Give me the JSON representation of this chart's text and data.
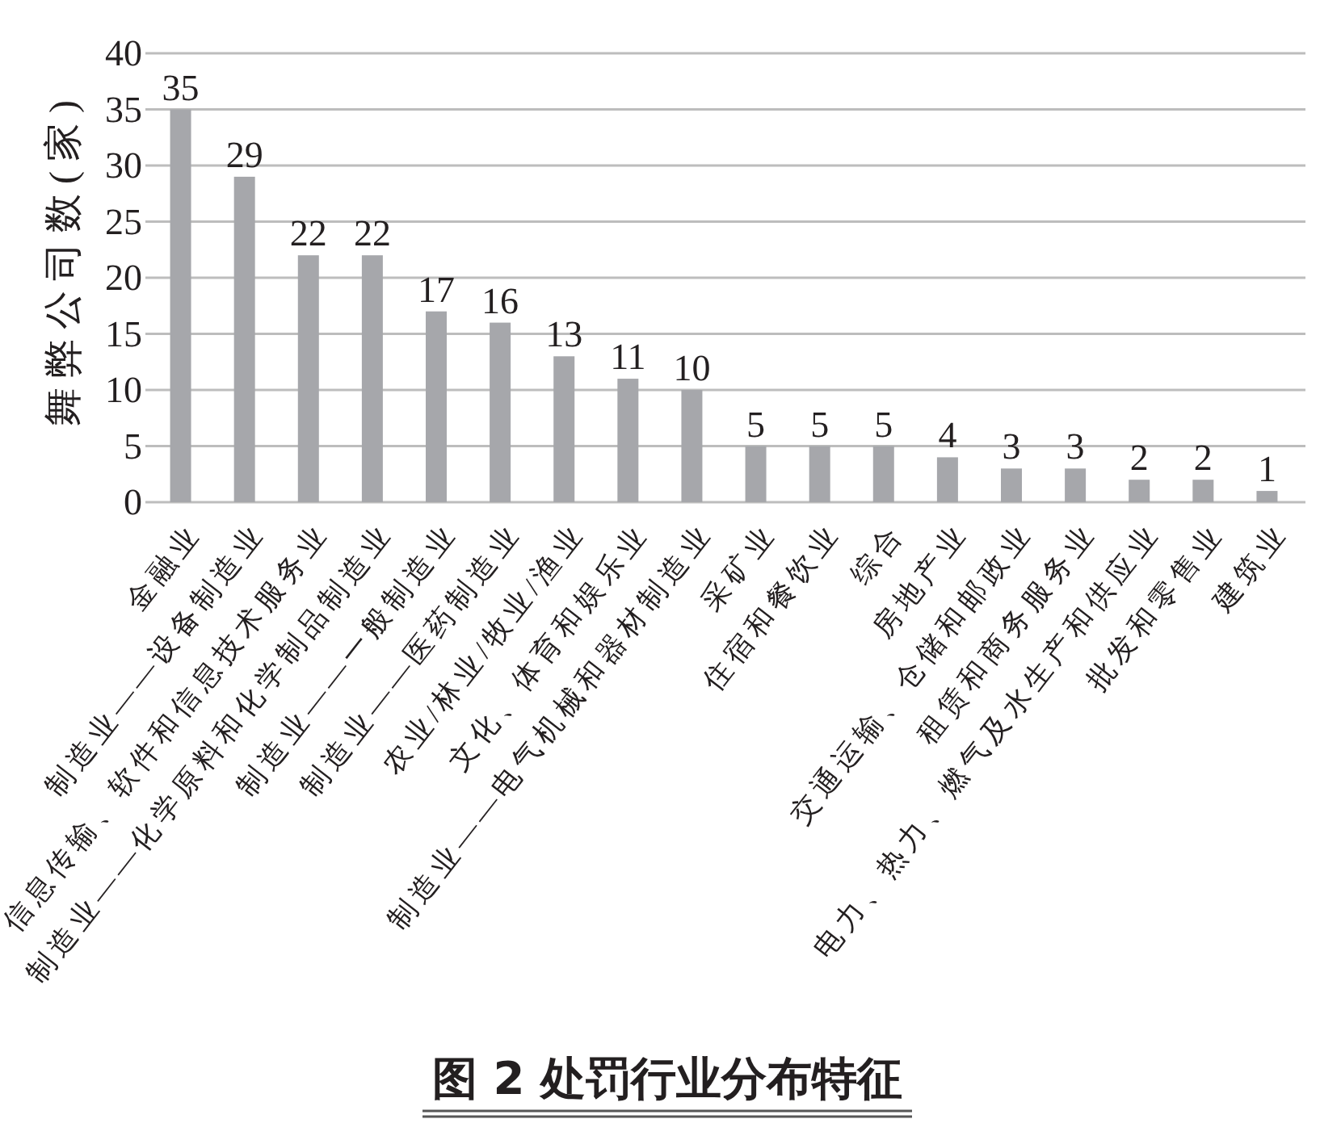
{
  "chart_data": {
    "type": "bar",
    "title": "图 2 处罚行业分布特征",
    "ylabel": "舞弊公司数(家)",
    "categories": [
      "金融业",
      "制造业——设备制造业",
      "信息传输、软件和信息技术服务业",
      "制造业——化学原料和化学制品制造业",
      "制造业——一般制造业",
      "制造业——医药制造业",
      "农业/林业/牧业/渔业",
      "文化、体育和娱乐业",
      "制造业——电气机械和器材制造业",
      "采矿业",
      "住宿和餐饮业",
      "综合",
      "房地产业",
      "交通运输、仓储和邮政业",
      "租赁和商务服务业",
      "电力、热力、燃气及水生产和供应业",
      "批发和零售业",
      "建筑业"
    ],
    "values": [
      35,
      29,
      22,
      22,
      17,
      16,
      13,
      11,
      10,
      5,
      5,
      5,
      4,
      3,
      3,
      2,
      2,
      1
    ],
    "color": "#a6a7ab",
    "ylim": [
      0,
      40
    ],
    "yticks": [
      0,
      5,
      10,
      15,
      20,
      25,
      30,
      35,
      40
    ],
    "grid": "y",
    "data_labels": true
  }
}
